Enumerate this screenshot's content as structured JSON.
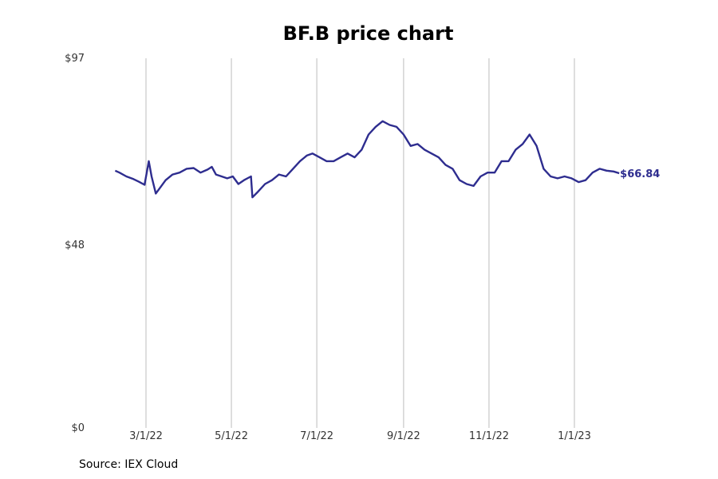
{
  "chart_data": {
    "type": "line",
    "title": "BF.B price chart",
    "source": "Source: IEX Cloud",
    "ylim": [
      0,
      97
    ],
    "y_ticks": [
      {
        "value": 97,
        "label": "$97"
      },
      {
        "value": 48,
        "label": "$48"
      },
      {
        "value": 0,
        "label": "$0"
      }
    ],
    "x_ticks": [
      {
        "date": "2022-03-01",
        "label": "3/1/22"
      },
      {
        "date": "2022-05-01",
        "label": "5/1/22"
      },
      {
        "date": "2022-07-01",
        "label": "7/1/22"
      },
      {
        "date": "2022-09-01",
        "label": "9/1/22"
      },
      {
        "date": "2022-11-01",
        "label": "11/1/22"
      },
      {
        "date": "2023-01-01",
        "label": "1/1/23"
      }
    ],
    "grid": "vertical",
    "line_color": "#2e2d8f",
    "last_value_label": "$66.84",
    "series": [
      {
        "x": [
          "2022-02-07",
          "2022-02-10",
          "2022-02-15",
          "2022-02-20",
          "2022-02-24",
          "2022-02-28",
          "2022-03-03",
          "2022-03-05",
          "2022-03-08",
          "2022-03-10",
          "2022-03-15",
          "2022-03-20",
          "2022-03-25",
          "2022-03-30",
          "2022-04-04",
          "2022-04-09",
          "2022-04-14",
          "2022-04-17",
          "2022-04-20",
          "2022-04-24",
          "2022-04-28",
          "2022-05-02",
          "2022-05-06",
          "2022-05-10",
          "2022-05-15",
          "2022-05-16",
          "2022-05-20",
          "2022-05-25",
          "2022-05-30",
          "2022-06-04",
          "2022-06-09",
          "2022-06-14",
          "2022-06-19",
          "2022-06-24",
          "2022-06-28",
          "2022-07-03",
          "2022-07-08",
          "2022-07-13",
          "2022-07-18",
          "2022-07-23",
          "2022-07-28",
          "2022-08-02",
          "2022-08-07",
          "2022-08-12",
          "2022-08-17",
          "2022-08-22",
          "2022-08-27",
          "2022-09-01",
          "2022-09-06",
          "2022-09-11",
          "2022-09-16",
          "2022-09-21",
          "2022-09-26",
          "2022-10-01",
          "2022-10-06",
          "2022-10-11",
          "2022-10-16",
          "2022-10-21",
          "2022-10-26",
          "2022-10-31",
          "2022-11-05",
          "2022-11-10",
          "2022-11-15",
          "2022-11-20",
          "2022-11-25",
          "2022-11-30",
          "2022-12-05",
          "2022-12-10",
          "2022-12-15",
          "2022-12-20",
          "2022-12-25",
          "2022-12-30",
          "2023-01-04",
          "2023-01-09",
          "2023-01-14",
          "2023-01-19",
          "2023-01-24",
          "2023-01-29",
          "2023-02-02"
        ],
        "y": [
          67.5,
          67,
          66,
          65.3,
          64.6,
          63.8,
          70,
          66,
          61.5,
          62.5,
          65,
          66.5,
          67,
          68,
          68.2,
          67,
          67.8,
          68.5,
          66.5,
          66,
          65.5,
          66,
          64,
          65,
          66,
          60.5,
          62,
          64,
          65,
          66.5,
          66,
          68,
          70,
          71.5,
          72,
          71,
          70,
          70,
          71,
          72,
          71,
          73,
          77,
          79,
          80.5,
          79.5,
          79,
          77,
          74,
          74.5,
          73,
          72,
          71,
          69,
          68,
          65,
          64,
          63.5,
          66,
          67,
          67,
          70,
          70,
          73,
          74.5,
          77,
          74,
          68,
          66,
          65.5,
          66,
          65.5,
          64.5,
          65,
          67,
          68,
          67.5,
          67.3,
          66.84
        ]
      }
    ]
  }
}
